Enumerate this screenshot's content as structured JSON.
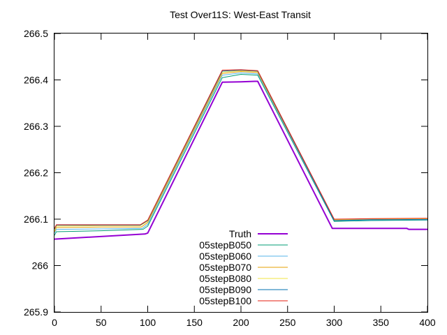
{
  "chart_data": {
    "type": "line",
    "title": "Test Over11S: West-East Transit",
    "xlabel": "",
    "ylabel": "",
    "xlim": [
      0,
      400
    ],
    "ylim": [
      265.9,
      266.5
    ],
    "xticks": [
      "0",
      "50",
      "100",
      "150",
      "200",
      "250",
      "300",
      "350",
      "400"
    ],
    "yticks": [
      "265.9",
      "266",
      "266.1",
      "266.2",
      "266.3",
      "266.4",
      "266.5"
    ],
    "grid": false,
    "legend_position": "bottom-center",
    "series": [
      {
        "name": "Truth",
        "color": "#9400d3",
        "points": [
          [
            0,
            266.057
          ],
          [
            97,
            266.068
          ],
          [
            100,
            266.07
          ],
          [
            180,
            266.395
          ],
          [
            200,
            266.396
          ],
          [
            215,
            266.397
          ],
          [
            218,
            266.397
          ],
          [
            298,
            266.08
          ],
          [
            340,
            266.08
          ],
          [
            378,
            266.08
          ],
          [
            380,
            266.078
          ],
          [
            400,
            266.078
          ]
        ]
      },
      {
        "name": "05stepB050",
        "color": "#009e73",
        "points": [
          [
            0,
            266.065
          ],
          [
            2,
            266.073
          ],
          [
            50,
            266.075
          ],
          [
            95,
            266.078
          ],
          [
            100,
            266.085
          ],
          [
            180,
            266.405
          ],
          [
            200,
            266.412
          ],
          [
            218,
            266.41
          ],
          [
            300,
            266.095
          ],
          [
            340,
            266.097
          ],
          [
            400,
            266.098
          ]
        ]
      },
      {
        "name": "05stepB060",
        "color": "#56b4e9",
        "points": [
          [
            0,
            266.07
          ],
          [
            2,
            266.078
          ],
          [
            50,
            266.079
          ],
          [
            94,
            266.08
          ],
          [
            100,
            266.089
          ],
          [
            180,
            266.41
          ],
          [
            200,
            266.415
          ],
          [
            218,
            266.413
          ],
          [
            300,
            266.097
          ],
          [
            340,
            266.098
          ],
          [
            400,
            266.1
          ]
        ]
      },
      {
        "name": "05stepB070",
        "color": "#e69f00",
        "points": [
          [
            0,
            266.073
          ],
          [
            2,
            266.082
          ],
          [
            50,
            266.083
          ],
          [
            93,
            266.083
          ],
          [
            100,
            266.093
          ],
          [
            180,
            266.414
          ],
          [
            200,
            266.418
          ],
          [
            218,
            266.416
          ],
          [
            300,
            266.098
          ],
          [
            340,
            266.1
          ],
          [
            400,
            266.101
          ]
        ]
      },
      {
        "name": "05stepB080",
        "color": "#f0e442",
        "points": [
          [
            0,
            266.076
          ],
          [
            2,
            266.085
          ],
          [
            50,
            266.086
          ],
          [
            92,
            266.086
          ],
          [
            100,
            266.096
          ],
          [
            180,
            266.417
          ],
          [
            200,
            266.42
          ],
          [
            218,
            266.418
          ],
          [
            300,
            266.099
          ],
          [
            340,
            266.1
          ],
          [
            400,
            266.101
          ]
        ]
      },
      {
        "name": "05stepB090",
        "color": "#0072b2",
        "points": [
          [
            0,
            266.078
          ],
          [
            2,
            266.087
          ],
          [
            50,
            266.087
          ],
          [
            92,
            266.087
          ],
          [
            100,
            266.097
          ],
          [
            180,
            266.419
          ],
          [
            200,
            266.421
          ],
          [
            218,
            266.419
          ],
          [
            300,
            266.097
          ],
          [
            340,
            266.099
          ],
          [
            400,
            266.099
          ]
        ]
      },
      {
        "name": "05stepB100",
        "color": "#e51e10",
        "points": [
          [
            0,
            266.08
          ],
          [
            2,
            266.088
          ],
          [
            50,
            266.088
          ],
          [
            92,
            266.088
          ],
          [
            100,
            266.098
          ],
          [
            180,
            266.421
          ],
          [
            200,
            266.422
          ],
          [
            218,
            266.42
          ],
          [
            300,
            266.1
          ],
          [
            340,
            266.101
          ],
          [
            400,
            266.102
          ]
        ]
      }
    ]
  }
}
